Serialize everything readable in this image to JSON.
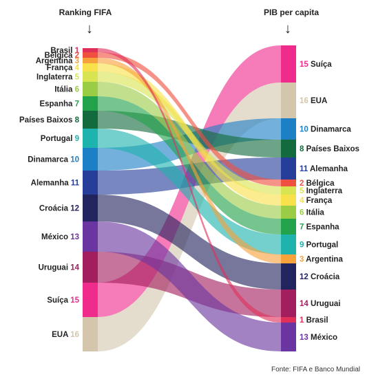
{
  "header": {
    "left_title": "Ranking FIFA",
    "right_title": "PIB per capita",
    "arrow_glyph": "↓"
  },
  "source": "Fonte: FIFA e Banco Mundial",
  "countries": [
    {
      "name": "Brasil",
      "fifa": 1,
      "gdp": 1,
      "color": "#e0305a"
    },
    {
      "name": "Bélgica",
      "fifa": 2,
      "gdp": 2,
      "color": "#f05040"
    },
    {
      "name": "Argentina",
      "fifa": 3,
      "gdp": 3,
      "color": "#f7a23b"
    },
    {
      "name": "França",
      "fifa": 4,
      "gdp": 4,
      "color": "#f8e14a"
    },
    {
      "name": "Inglaterra",
      "fifa": 5,
      "gdp": 5,
      "color": "#d8e452"
    },
    {
      "name": "Itália",
      "fifa": 6,
      "gdp": 6,
      "color": "#9bcc46"
    },
    {
      "name": "Espanha",
      "fifa": 7,
      "gdp": 7,
      "color": "#22a24b"
    },
    {
      "name": "Países Baixos",
      "fifa": 8,
      "gdp": 8,
      "color": "#136a3c"
    },
    {
      "name": "Portugal",
      "fifa": 9,
      "gdp": 9,
      "color": "#1fb3ae"
    },
    {
      "name": "Dinamarca",
      "fifa": 10,
      "gdp": 10,
      "color": "#1d7fc6"
    },
    {
      "name": "Alemanha",
      "fifa": 11,
      "gdp": 11,
      "color": "#273d9a"
    },
    {
      "name": "Croácia",
      "fifa": 12,
      "gdp": 12,
      "color": "#22245e"
    },
    {
      "name": "México",
      "fifa": 13,
      "gdp": 13,
      "color": "#6a35a0"
    },
    {
      "name": "Uruguai",
      "fifa": 14,
      "gdp": 14,
      "color": "#a31e5e"
    },
    {
      "name": "Suíça",
      "fifa": 15,
      "gdp": 15,
      "color": "#ef2b8c"
    },
    {
      "name": "EUA",
      "fifa": 16,
      "gdp": 16,
      "color": "#d3c6ac"
    }
  ]
}
